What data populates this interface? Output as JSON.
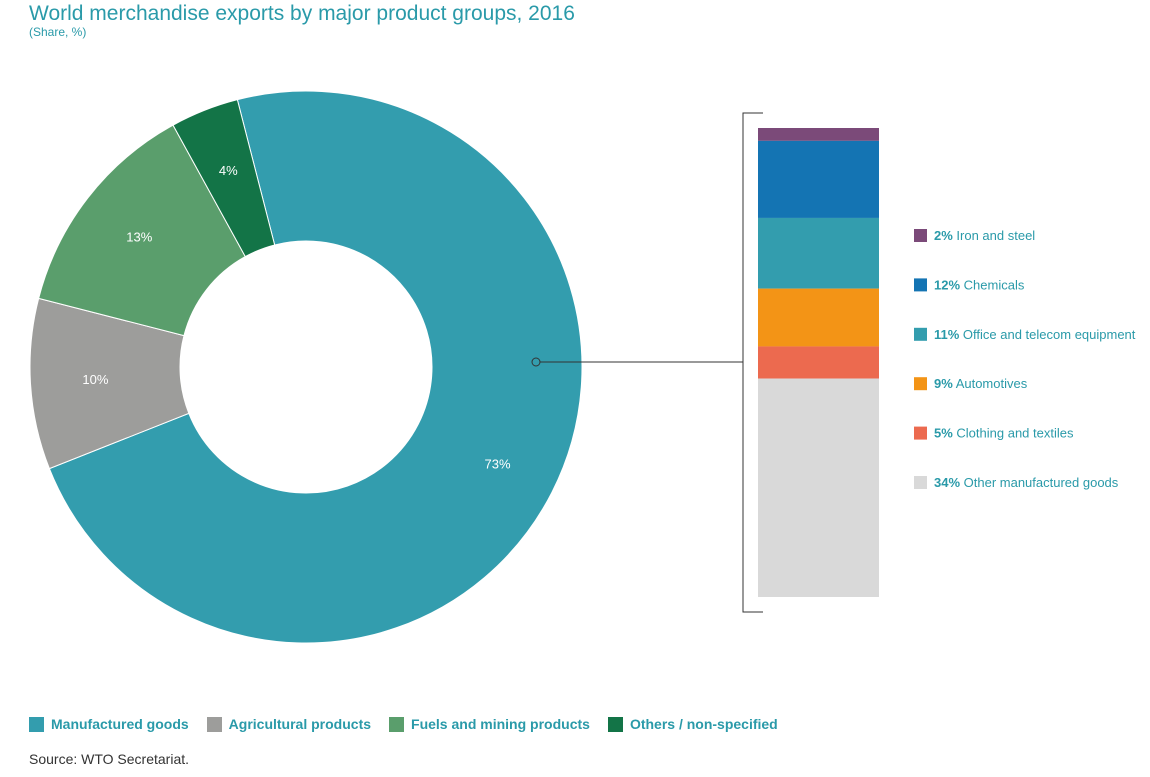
{
  "title": "World merchandise exports by major product groups, 2016",
  "subtitle": "(Share, %)",
  "source": "Source: WTO Secretariat.",
  "colors": {
    "title": "#2a9aa9",
    "manufactured": "#339dae",
    "agricultural": "#9d9d9b",
    "fuels": "#5a9e6c",
    "others": "#137447",
    "iron_steel": "#7b4a79",
    "chemicals": "#1474b3",
    "office_telecom": "#339dae",
    "automotives": "#f39416",
    "clothing": "#ec6a4f",
    "other_manufactured": "#d9d9d9"
  },
  "chart_data": [
    {
      "type": "pie",
      "donut": true,
      "categories": [
        "Manufactured goods",
        "Agricultural products",
        "Fuels and mining products",
        "Others / non-specified"
      ],
      "values": [
        73,
        10,
        13,
        4
      ],
      "data_labels": [
        "73%",
        "10%",
        "13%",
        "4%"
      ],
      "legend": "bottom-left"
    },
    {
      "type": "bar",
      "stacked": true,
      "parent": "Manufactured goods",
      "categories": [
        "Iron and steel",
        "Chemicals",
        "Office and telecom equipment",
        "Automotives",
        "Clothing and textiles",
        "Other manufactured goods"
      ],
      "values": [
        2,
        12,
        11,
        9,
        5,
        34
      ],
      "value_labels": [
        "2%",
        "12%",
        "11%",
        "9%",
        "5%",
        "34%"
      ],
      "legend": "right"
    }
  ]
}
